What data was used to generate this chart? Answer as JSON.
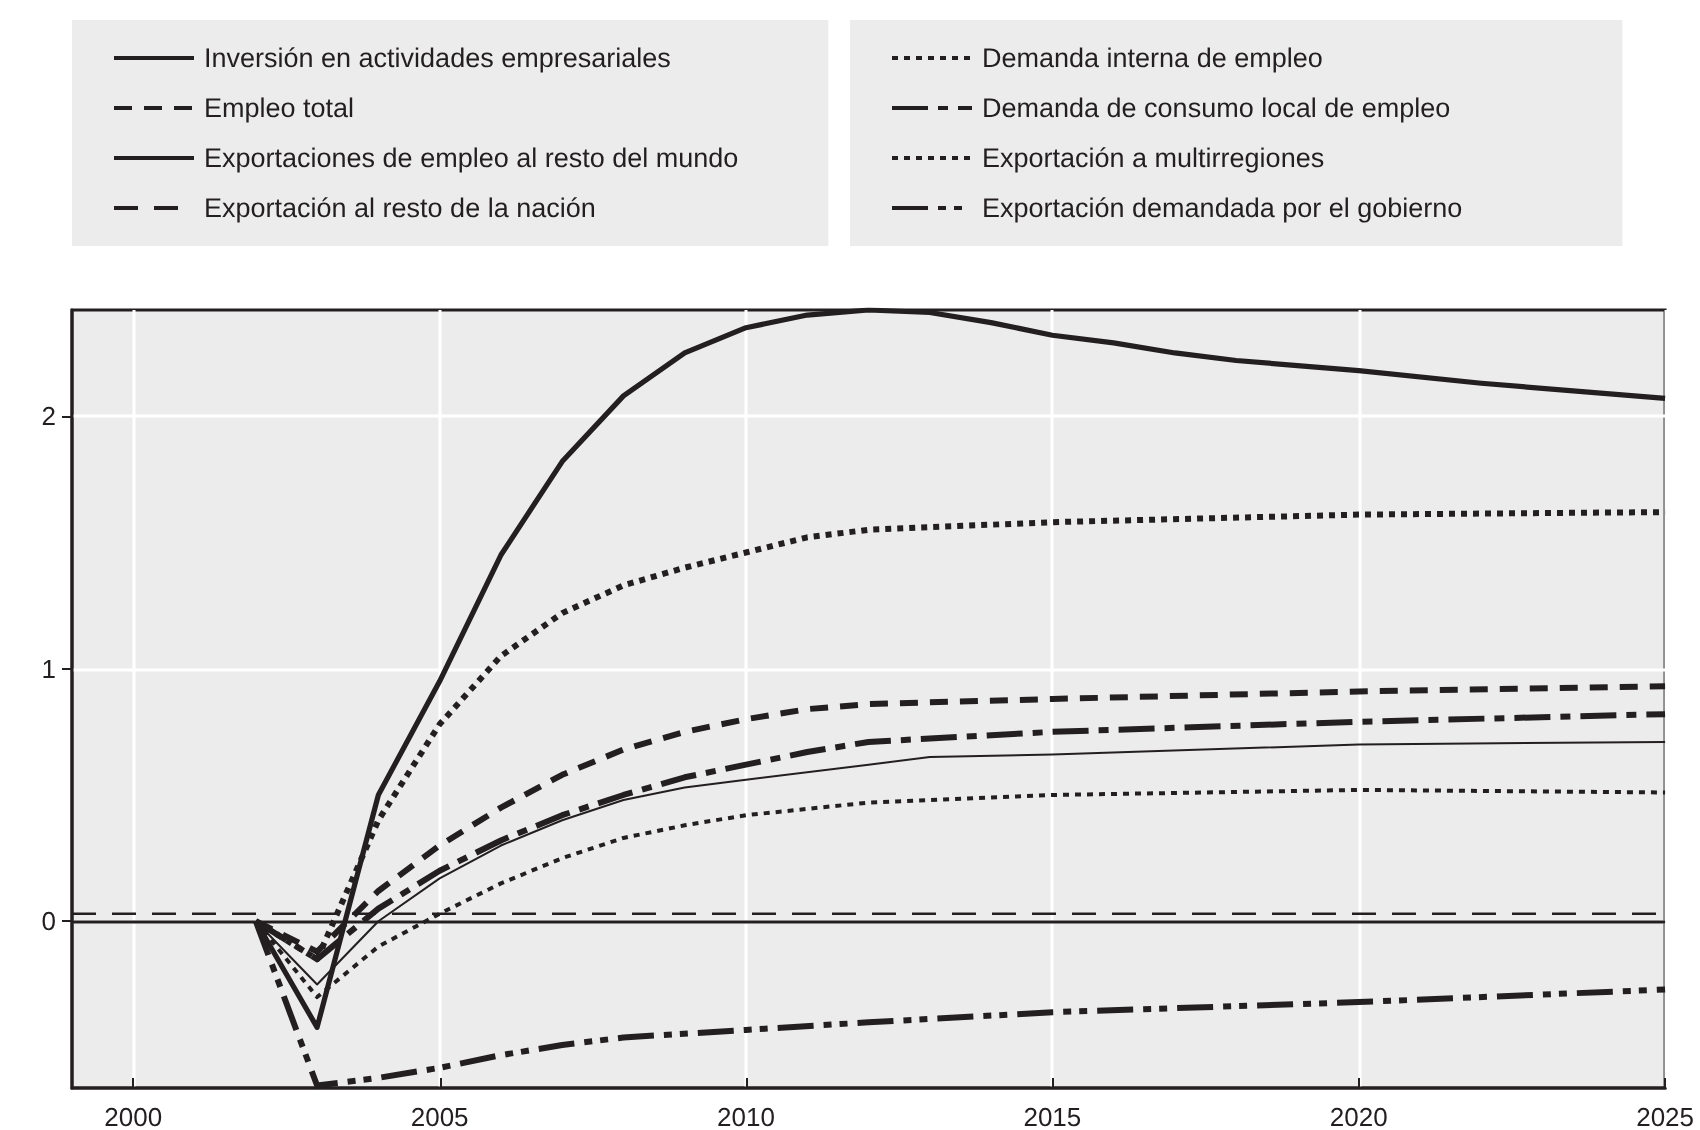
{
  "chart_data": {
    "type": "line",
    "xlim": [
      1999,
      2025
    ],
    "xticks": [
      2000,
      2005,
      2010,
      2015,
      2020,
      2025
    ],
    "ylim": [
      -0.66,
      2.42
    ],
    "yticks": [
      0,
      1,
      2
    ],
    "grid": true,
    "legend": "top",
    "marker": "none",
    "ref_lines": [
      {
        "axis": "y",
        "value": 0,
        "color": "#231f20",
        "line_style": "solid"
      }
    ],
    "series": [
      {
        "name": "Inversión en actividades empresariales",
        "color": "#231f20",
        "line_style": "solid",
        "x": [
          2002,
          2003,
          2004,
          2005,
          2006,
          2007,
          2008,
          2009,
          2010,
          2011,
          2012,
          2013,
          2014,
          2015,
          2016,
          2017,
          2018,
          2019,
          2020,
          2022,
          2025
        ],
        "values": [
          0,
          -0.42,
          0.5,
          0.95,
          1.45,
          1.82,
          2.08,
          2.25,
          2.35,
          2.4,
          2.42,
          2.41,
          2.37,
          2.32,
          2.29,
          2.25,
          2.22,
          2.2,
          2.18,
          2.13,
          2.07
        ]
      },
      {
        "name": "Demanda interna de empleo",
        "color": "#231f20",
        "line_style": "dotted",
        "x": [
          2002,
          2003,
          2004,
          2005,
          2006,
          2007,
          2008,
          2009,
          2010,
          2011,
          2012,
          2015,
          2020,
          2025
        ],
        "values": [
          0,
          -0.15,
          0.4,
          0.78,
          1.05,
          1.22,
          1.33,
          1.4,
          1.46,
          1.52,
          1.55,
          1.58,
          1.61,
          1.62
        ]
      },
      {
        "name": "Empleo total",
        "color": "#231f20",
        "line_style": "dashed",
        "x": [
          2002,
          2003,
          2004,
          2005,
          2006,
          2007,
          2008,
          2009,
          2010,
          2011,
          2012,
          2015,
          2020,
          2025
        ],
        "values": [
          0,
          -0.12,
          0.12,
          0.3,
          0.45,
          0.58,
          0.68,
          0.75,
          0.8,
          0.84,
          0.86,
          0.88,
          0.91,
          0.93
        ]
      },
      {
        "name": "Demanda de consumo local de empleo",
        "color": "#231f20",
        "line_style": "dashdot",
        "x": [
          2002,
          2003,
          2004,
          2005,
          2006,
          2007,
          2008,
          2009,
          2010,
          2011,
          2012,
          2015,
          2020,
          2025
        ],
        "values": [
          0,
          -0.15,
          0.05,
          0.2,
          0.32,
          0.42,
          0.5,
          0.57,
          0.62,
          0.67,
          0.71,
          0.75,
          0.79,
          0.82
        ]
      },
      {
        "name": "Exportaciones de empleo al resto del mundo",
        "color": "#231f20",
        "line_style": "solid",
        "x": [
          2002,
          2003,
          2004,
          2005,
          2006,
          2007,
          2008,
          2009,
          2010,
          2012,
          2013,
          2015,
          2020,
          2025
        ],
        "values": [
          0,
          -0.25,
          0,
          0.17,
          0.3,
          0.4,
          0.48,
          0.53,
          0.56,
          0.62,
          0.65,
          0.66,
          0.7,
          0.71
        ]
      },
      {
        "name": "Exportación a multirregiones",
        "color": "#231f20",
        "line_style": "dotted",
        "x": [
          2002,
          2003,
          2004,
          2005,
          2006,
          2007,
          2008,
          2009,
          2010,
          2012,
          2015,
          2020,
          2025
        ],
        "values": [
          0,
          -0.3,
          -0.1,
          0.03,
          0.15,
          0.25,
          0.33,
          0.38,
          0.42,
          0.47,
          0.5,
          0.52,
          0.51
        ]
      },
      {
        "name": "Exportación al resto de la nación",
        "color": "#231f20",
        "line_style": "dashed",
        "x": [
          1999,
          2025
        ],
        "values": [
          0.03,
          0.03
        ]
      },
      {
        "name": "Exportación demandada por el gobierno",
        "color": "#231f20",
        "line_style": "dashdotdot",
        "x": [
          2002,
          2003,
          2004,
          2005,
          2006,
          2007,
          2008,
          2010,
          2012,
          2015,
          2020,
          2025
        ],
        "values": [
          0,
          -0.65,
          -0.62,
          -0.58,
          -0.53,
          -0.49,
          -0.46,
          -0.43,
          -0.4,
          -0.36,
          -0.32,
          -0.27
        ]
      }
    ]
  }
}
